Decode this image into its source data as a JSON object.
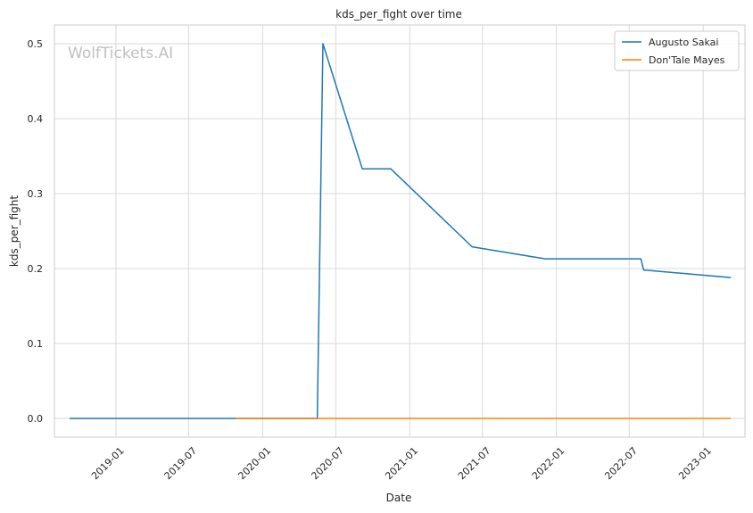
{
  "chart_data": {
    "type": "line",
    "title": "kds_per_fight over time",
    "xlabel": "Date",
    "ylabel": "kds_per_fight",
    "watermark": "WolfTickets.AI",
    "x_axis_type": "date",
    "xlim": [
      "2018-08-01",
      "2023-04-15"
    ],
    "ylim": [
      -0.025,
      0.525
    ],
    "x_ticks": [
      "2019-01-01",
      "2019-07-01",
      "2020-01-01",
      "2020-07-01",
      "2021-01-01",
      "2021-07-01",
      "2022-01-01",
      "2022-07-01",
      "2023-01-01"
    ],
    "x_tick_labels": [
      "2019-01",
      "2019-07",
      "2020-01",
      "2020-07",
      "2021-01",
      "2021-07",
      "2022-01",
      "2022-07",
      "2023-01"
    ],
    "y_ticks": [
      0.0,
      0.1,
      0.2,
      0.3,
      0.4,
      0.5
    ],
    "y_tick_labels": [
      "0.0",
      "0.1",
      "0.2",
      "0.3",
      "0.4",
      "0.5"
    ],
    "grid": true,
    "legend_position": "top-right",
    "series": [
      {
        "name": "Augusto Sakai",
        "color": "#1f77b4",
        "points": [
          {
            "x": "2018-09-08",
            "y": 0.0
          },
          {
            "x": "2020-05-16",
            "y": 0.0
          },
          {
            "x": "2020-05-30",
            "y": 0.5
          },
          {
            "x": "2020-09-05",
            "y": 0.333
          },
          {
            "x": "2020-11-15",
            "y": 0.333
          },
          {
            "x": "2021-06-05",
            "y": 0.229
          },
          {
            "x": "2021-12-04",
            "y": 0.213
          },
          {
            "x": "2022-07-30",
            "y": 0.213
          },
          {
            "x": "2022-08-06",
            "y": 0.198
          },
          {
            "x": "2023-03-11",
            "y": 0.188
          }
        ]
      },
      {
        "name": "Don'Tale Mayes",
        "color": "#ff7f0e",
        "points": [
          {
            "x": "2019-10-26",
            "y": 0.0
          },
          {
            "x": "2023-03-11",
            "y": 0.0
          }
        ]
      }
    ]
  }
}
